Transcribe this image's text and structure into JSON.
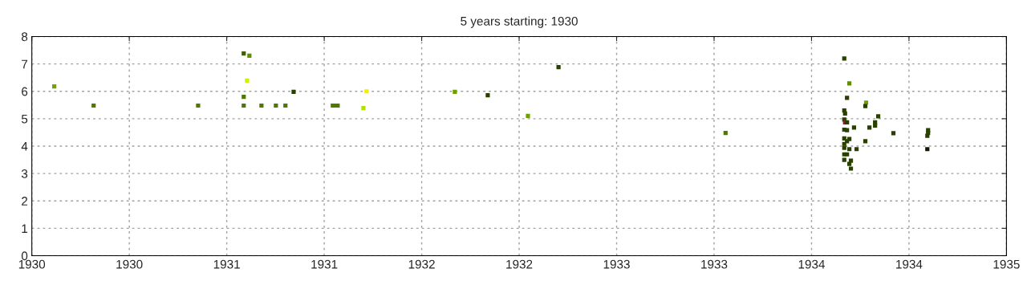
{
  "chart_data": {
    "type": "scatter",
    "title": "5 years starting: 1930",
    "x": [
      1930.115,
      1930.317,
      1930.853,
      1931.087,
      1931.116,
      1931.104,
      1931.087,
      1931.087,
      1931.178,
      1931.252,
      1931.301,
      1931.343,
      1931.544,
      1931.557,
      1931.569,
      1931.701,
      1931.717,
      1932.17,
      1932.339,
      1932.545,
      1932.702,
      1933.559,
      1934.168,
      1934.194,
      1934.182,
      1934.28,
      1934.276,
      1934.342,
      1934.168,
      1934.172,
      1934.168,
      1934.172,
      1934.182,
      1934.168,
      1934.182,
      1934.218,
      1934.297,
      1934.326,
      1934.326,
      1934.42,
      1934.168,
      1934.194,
      1934.182,
      1934.168,
      1934.168,
      1934.194,
      1934.231,
      1934.276,
      1934.168,
      1934.182,
      1934.168,
      1934.202,
      1934.194,
      1934.202,
      1934.598,
      1934.594,
      1934.598,
      1934.594
    ],
    "values": [
      6.18,
      5.48,
      5.48,
      7.38,
      7.3,
      6.39,
      5.8,
      5.48,
      5.48,
      5.48,
      5.48,
      5.98,
      5.48,
      5.48,
      5.48,
      5.39,
      6.0,
      5.98,
      5.86,
      5.1,
      6.88,
      4.48,
      7.2,
      6.29,
      5.76,
      5.59,
      5.46,
      5.09,
      5.3,
      5.19,
      4.97,
      4.87,
      4.87,
      4.6,
      4.58,
      4.68,
      4.68,
      4.87,
      4.75,
      4.47,
      4.28,
      4.26,
      4.18,
      4.08,
      3.94,
      3.89,
      3.89,
      4.18,
      3.7,
      3.7,
      3.5,
      3.47,
      3.35,
      3.18,
      4.58,
      4.38,
      4.48,
      3.89
    ],
    "colors": [
      "#77a300",
      "#4f7a00",
      "#4f7a00",
      "#3f5f00",
      "#5f8f00",
      "#d0f000",
      "#4f7a00",
      "#4f7a00",
      "#4f7a00",
      "#4f7a00",
      "#4f7a00",
      "#2a4000",
      "#4f7a00",
      "#4f7a00",
      "#4f7a00",
      "#b0e000",
      "#f0f000",
      "#6f9f00",
      "#2a4000",
      "#6f9f00",
      "#2a4000",
      "#4f7a00",
      "#2a4000",
      "#5f8f00",
      "#2a4000",
      "#6f9f00",
      "#2a4000",
      "#2a4000",
      "#2a4000",
      "#2a4000",
      "#2a4000",
      "#7a2040",
      "#2a4000",
      "#2a4000",
      "#2a4000",
      "#2a4000",
      "#2a4000",
      "#2a4000",
      "#2a4000",
      "#2a4000",
      "#2a4000",
      "#2a4000",
      "#2a4000",
      "#2a4000",
      "#2a4000",
      "#2a4000",
      "#2a4000",
      "#2a4000",
      "#2a4000",
      "#2a4000",
      "#2a4000",
      "#2a4000",
      "#2a4000",
      "#2a4000",
      "#2a4000",
      "#2a4000",
      "#2a4000",
      "#101a00"
    ],
    "marker": "square",
    "xlim": [
      1930,
      1935
    ],
    "xticks": [
      {
        "value": 1930,
        "label": "1930"
      },
      {
        "value": 1930.5,
        "label": "1930"
      },
      {
        "value": 1931,
        "label": "1931"
      },
      {
        "value": 1931.5,
        "label": "1931"
      },
      {
        "value": 1932,
        "label": "1932"
      },
      {
        "value": 1932.5,
        "label": "1932"
      },
      {
        "value": 1933,
        "label": "1933"
      },
      {
        "value": 1933.5,
        "label": "1933"
      },
      {
        "value": 1934,
        "label": "1934"
      },
      {
        "value": 1934.5,
        "label": "1934"
      },
      {
        "value": 1935,
        "label": "1935"
      }
    ],
    "ylim": [
      0,
      8
    ],
    "yticks": [
      0,
      1,
      2,
      3,
      4,
      5,
      6,
      7,
      8
    ],
    "grid": true
  }
}
